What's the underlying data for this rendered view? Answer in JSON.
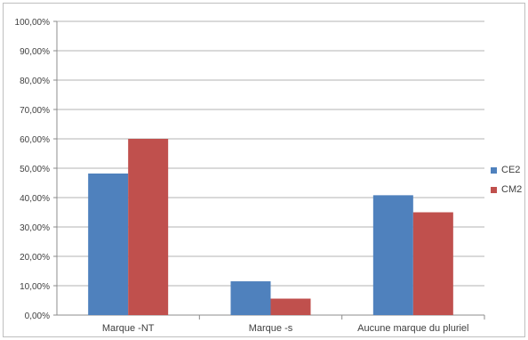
{
  "chart_data": {
    "type": "bar",
    "categories": [
      "Marque -NT",
      "Marque -s",
      "Aucune marque du pluriel"
    ],
    "series": [
      {
        "name": "CE2",
        "values": [
          48.2,
          11.5,
          40.8
        ],
        "color": "#4f81bd"
      },
      {
        "name": "CM2",
        "values": [
          60.0,
          5.6,
          35.0
        ],
        "color": "#c0504d"
      }
    ],
    "ylim": [
      0,
      100
    ],
    "yticks": [
      "0,00%",
      "10,00%",
      "20,00%",
      "30,00%",
      "40,00%",
      "50,00%",
      "60,00%",
      "70,00%",
      "80,00%",
      "90,00%",
      "100,00%"
    ],
    "grid": true,
    "legend": "right"
  }
}
